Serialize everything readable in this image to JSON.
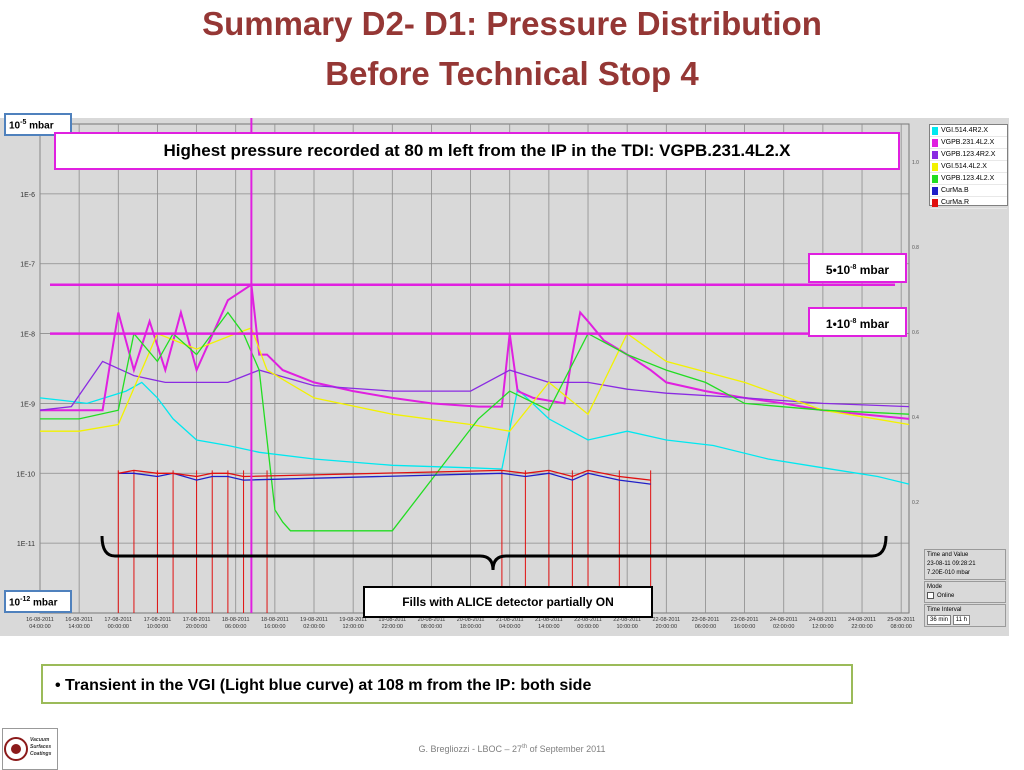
{
  "slide": {
    "title_line1": "Summary D2- D1: Pressure Distribution",
    "title_line2": "Before Technical Stop 4",
    "headline": "Highest pressure recorded at 80 m left from the IP in the TDI: VGPB.231.4L2.X",
    "fills_note": "Fills with ALICE detector partially ON",
    "bullet": "• Transient in the VGI (Light blue curve) at 108 m from the IP: both side",
    "footer": {
      "prefix": "G. Bregliozzi - LBOC – 27",
      "sup": "th",
      "suffix": " of September 2011"
    },
    "logo": {
      "lines": [
        "Vacuum",
        "Surfaces",
        "Coatings"
      ]
    }
  },
  "annotations": {
    "ymax": {
      "base": "10",
      "exp": "-5",
      "unit": " mbar"
    },
    "ymin": {
      "base": "10",
      "exp": "-12",
      "unit": " mbar"
    },
    "level_5e8": {
      "mant": "5•10",
      "exp": "-8",
      "unit": " mbar"
    },
    "level_1e8": {
      "mant": "1•10",
      "exp": "-8",
      "unit": " mbar"
    }
  },
  "colors": {
    "title": "#953735",
    "magenta": "#e020e0",
    "cyan": "#00e8f0",
    "violet": "#8a2be2",
    "yellow": "#f2f200",
    "green": "#22dd22",
    "navy": "#1f1fc8",
    "red": "#e01010",
    "plot_bg": "#d9d9d9",
    "grid": "#8c8c8c"
  },
  "side_panel": {
    "time_value_title": "Time and Value",
    "time": "23-08-11 09:28:21",
    "value": "7.20E-010 mbar",
    "mode_title": "Mode",
    "online_label": "Online",
    "interval_title": "Time Interval",
    "interval_value": "36 min",
    "interval_value2": "11 h"
  },
  "chart_data": {
    "type": "line",
    "y_scale": "log",
    "ylim": [
      1e-12,
      1e-05
    ],
    "xlim": [
      "16-08-2011 04:00:00",
      "25-08-2011 12:00:00"
    ],
    "y_tick_labels": [
      "1E-6",
      "1E-7",
      "1E-8",
      "1E-9",
      "1E-10",
      "1E-11"
    ],
    "right_tick_labels": [
      "1.0",
      "0.8",
      "0.6",
      "0.4",
      "0.2"
    ],
    "x_tick_labels": [
      [
        "16-08-2011",
        "04:00:00"
      ],
      [
        "16-08-2011",
        "14:00:00"
      ],
      [
        "17-08-2011",
        "00:00:00"
      ],
      [
        "17-08-2011",
        "10:00:00"
      ],
      [
        "17-08-2011",
        "20:00:00"
      ],
      [
        "18-08-2011",
        "06:00:00"
      ],
      [
        "18-08-2011",
        "16:00:00"
      ],
      [
        "19-08-2011",
        "02:00:00"
      ],
      [
        "19-08-2011",
        "12:00:00"
      ],
      [
        "19-08-2011",
        "22:00:00"
      ],
      [
        "20-08-2011",
        "08:00:00"
      ],
      [
        "20-08-2011",
        "18:00:00"
      ],
      [
        "21-08-2011",
        "04:00:00"
      ],
      [
        "21-08-2011",
        "14:00:00"
      ],
      [
        "22-08-2011",
        "00:00:00"
      ],
      [
        "22-08-2011",
        "10:00:00"
      ],
      [
        "22-08-2011",
        "20:00:00"
      ],
      [
        "23-08-2011",
        "06:00:00"
      ],
      [
        "23-08-2011",
        "16:00:00"
      ],
      [
        "24-08-2011",
        "02:00:00"
      ],
      [
        "24-08-2011",
        "12:00:00"
      ],
      [
        "24-08-2011",
        "22:00:00"
      ],
      [
        "25-08-2011",
        "08:00:00"
      ]
    ],
    "reference_levels": [
      5e-08,
      1e-08
    ],
    "legend": [
      "VGI.514.4R2.X",
      "VGPB.231.4L2.X",
      "VGPB.123.4R2.X",
      "VGI.514.4L2.X",
      "VGPB.123.4L2.X",
      "CurMa.B",
      "CurMa.R"
    ],
    "series": [
      {
        "name": "VGI.514.4R2.X",
        "color": "#00e8f0",
        "t": [
          0,
          6,
          12,
          22,
          26,
          30,
          34,
          40,
          48,
          56,
          70,
          90,
          110,
          118,
          122,
          130,
          140,
          150,
          160,
          172,
          186,
          200,
          214,
          222
        ],
        "y": [
          1.2e-09,
          1.1e-09,
          1e-09,
          1.5e-09,
          2e-09,
          1.2e-09,
          6e-10,
          3e-10,
          2.5e-10,
          2e-10,
          1.6e-10,
          1.3e-10,
          1.2e-10,
          1.15e-10,
          1.6e-09,
          6e-10,
          3e-10,
          4e-10,
          3e-10,
          2.5e-10,
          1.6e-10,
          1.2e-10,
          9e-11,
          7e-11
        ]
      },
      {
        "name": "VGPB.231.4L2.X",
        "color": "#e020e0",
        "t": [
          0,
          8,
          16,
          20,
          24,
          28,
          32,
          36,
          40,
          48,
          54,
          56,
          58,
          62,
          70,
          80,
          90,
          100,
          112,
          118,
          120,
          122,
          126,
          134,
          136,
          138,
          140,
          144,
          150,
          156,
          160,
          170,
          180,
          190,
          200,
          210,
          222
        ],
        "y": [
          8e-10,
          8e-10,
          8e-10,
          2e-08,
          3e-09,
          1.5e-08,
          3e-09,
          2e-08,
          3e-09,
          3e-08,
          5e-08,
          5e-09,
          5e-09,
          3e-09,
          2e-09,
          1.5e-09,
          1.2e-09,
          1e-09,
          9e-10,
          9e-10,
          1e-08,
          1.5e-09,
          1.2e-09,
          1e-09,
          5e-09,
          2e-08,
          1.5e-08,
          8e-09,
          5e-09,
          3e-09,
          2e-09,
          1.5e-09,
          1.2e-09,
          1e-09,
          8e-10,
          7e-10,
          6e-10
        ]
      },
      {
        "name": "VGPB.123.4R2.X",
        "color": "#8a2be2",
        "t": [
          0,
          8,
          16,
          24,
          32,
          40,
          48,
          56,
          70,
          90,
          110,
          120,
          130,
          140,
          150,
          160,
          180,
          200,
          222
        ],
        "y": [
          8e-10,
          9e-10,
          4e-09,
          2.5e-09,
          2e-09,
          2e-09,
          2e-09,
          3e-09,
          1.8e-09,
          1.5e-09,
          1.5e-09,
          3e-09,
          2e-09,
          2e-09,
          1.6e-09,
          1.4e-09,
          1.2e-09,
          1e-09,
          9e-10
        ]
      },
      {
        "name": "VGI.514.4L2.X",
        "color": "#f2f200",
        "t": [
          0,
          10,
          20,
          30,
          40,
          50,
          54,
          58,
          70,
          90,
          110,
          120,
          130,
          140,
          150,
          160,
          180,
          200,
          222
        ],
        "y": [
          4e-10,
          4e-10,
          5e-10,
          1e-08,
          6e-09,
          1e-08,
          1.2e-08,
          3e-09,
          1.2e-09,
          7e-10,
          5e-10,
          4e-10,
          2e-09,
          7e-10,
          1e-08,
          4e-09,
          2e-09,
          8e-10,
          5e-10
        ]
      },
      {
        "name": "VGPB.123.4L2.X",
        "color": "#22dd22",
        "t": [
          0,
          10,
          20,
          24,
          30,
          34,
          40,
          48,
          52,
          56,
          60,
          62,
          64,
          66,
          70,
          80,
          90,
          112,
          120,
          130,
          140,
          150,
          160,
          170,
          180,
          200,
          222
        ],
        "y": [
          6e-10,
          6e-10,
          8e-10,
          1e-08,
          4e-09,
          1e-08,
          5e-09,
          2e-08,
          1e-08,
          3e-09,
          3e-11,
          2e-11,
          1.5e-11,
          1.5e-11,
          1.5e-11,
          1.5e-11,
          1.5e-11,
          6e-10,
          1.5e-09,
          8e-10,
          1e-08,
          5e-09,
          3e-09,
          2e-09,
          1e-09,
          8e-10,
          7e-10
        ]
      },
      {
        "name": "CurMa.B",
        "color": "#1f1fc8",
        "t": [
          20,
          24,
          30,
          34,
          40,
          44,
          48,
          52,
          118,
          124,
          130,
          136,
          140,
          148,
          156
        ],
        "y": [
          1e-10,
          1e-10,
          9e-11,
          1e-10,
          8e-11,
          9e-11,
          9e-11,
          8e-11,
          1e-10,
          9e-11,
          1e-10,
          8e-11,
          1e-10,
          8e-11,
          7e-11
        ]
      },
      {
        "name": "CurMa.R",
        "color": "#e01010",
        "t": [
          20,
          24,
          30,
          34,
          40,
          44,
          48,
          52,
          118,
          124,
          130,
          136,
          140,
          148,
          156
        ],
        "y": [
          1e-10,
          1.1e-10,
          1e-10,
          1e-10,
          9e-11,
          1e-10,
          1e-10,
          9e-11,
          1.1e-10,
          1e-10,
          1.1e-10,
          9e-11,
          1.1e-10,
          9e-11,
          8e-11
        ]
      }
    ],
    "fill_spikes_hours": [
      20,
      24,
      30,
      34,
      40,
      44,
      48,
      52,
      58,
      118,
      124,
      130,
      136,
      140,
      148,
      156
    ]
  }
}
